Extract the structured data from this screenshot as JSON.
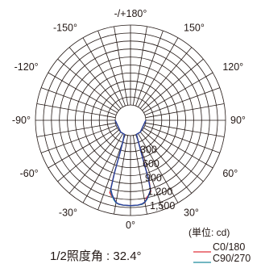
{
  "chart_data": {
    "type": "polar-line",
    "radial_axis": {
      "ticks": [
        300,
        600,
        900,
        1200,
        1500
      ],
      "tick_labels": [
        "300",
        "600",
        "900",
        "1,200",
        "1,500"
      ],
      "max": 1500
    },
    "angular_axis": {
      "labels": [
        {
          "angle": 0,
          "text": "0°"
        },
        {
          "angle": 30,
          "text": "30°"
        },
        {
          "angle": 60,
          "text": "60°"
        },
        {
          "angle": 90,
          "text": "90°"
        },
        {
          "angle": 120,
          "text": "120°"
        },
        {
          "angle": 150,
          "text": "150°"
        },
        {
          "angle": 180,
          "text": "-/+180°"
        },
        {
          "angle": -150,
          "text": "-150°"
        },
        {
          "angle": -120,
          "text": "-120°"
        },
        {
          "angle": -90,
          "text": "-90°"
        },
        {
          "angle": -60,
          "text": "-60°"
        },
        {
          "angle": -30,
          "text": "-30°"
        }
      ]
    },
    "unit_label": "(単位: cd)",
    "series": [
      {
        "name": "C0/180",
        "color": "#e0303a",
        "points": [
          [
            -90,
            0
          ],
          [
            -40,
            0
          ],
          [
            -24,
            0
          ],
          [
            -20,
            150
          ],
          [
            -18,
            400
          ],
          [
            -17,
            900
          ],
          [
            -16,
            1280
          ],
          [
            -14,
            1340
          ],
          [
            -12,
            1370
          ],
          [
            -10,
            1460
          ],
          [
            -8,
            1480
          ],
          [
            -5,
            1490
          ],
          [
            0,
            1495
          ],
          [
            5,
            1490
          ],
          [
            8,
            1480
          ],
          [
            10,
            1460
          ],
          [
            12,
            1350
          ],
          [
            14,
            1310
          ],
          [
            16,
            1250
          ],
          [
            17,
            1050
          ],
          [
            18,
            600
          ],
          [
            20,
            200
          ],
          [
            23,
            0
          ],
          [
            40,
            0
          ],
          [
            90,
            0
          ]
        ]
      },
      {
        "name": "C90/270",
        "color": "#1f8c9e",
        "points": [
          [
            -90,
            0
          ],
          [
            -40,
            0
          ],
          [
            -24,
            0
          ],
          [
            -20,
            150
          ],
          [
            -18,
            400
          ],
          [
            -17,
            850
          ],
          [
            -16,
            1230
          ],
          [
            -14,
            1320
          ],
          [
            -12,
            1400
          ],
          [
            -10,
            1460
          ],
          [
            -8,
            1480
          ],
          [
            -5,
            1490
          ],
          [
            0,
            1495
          ],
          [
            5,
            1490
          ],
          [
            8,
            1480
          ],
          [
            10,
            1450
          ],
          [
            12,
            1390
          ],
          [
            14,
            1310
          ],
          [
            16,
            1230
          ],
          [
            17,
            1000
          ],
          [
            18,
            500
          ],
          [
            20,
            180
          ],
          [
            23,
            0
          ],
          [
            40,
            0
          ],
          [
            90,
            0
          ]
        ]
      },
      {
        "name": "",
        "color": "#2b3f9c",
        "points": [
          [
            -90,
            0
          ],
          [
            -40,
            0
          ],
          [
            -24,
            0
          ],
          [
            -20,
            120
          ],
          [
            -18,
            380
          ],
          [
            -17,
            820
          ],
          [
            -16,
            1200
          ],
          [
            -14,
            1300
          ],
          [
            -12,
            1380
          ],
          [
            -10,
            1450
          ],
          [
            -8,
            1475
          ],
          [
            -5,
            1488
          ],
          [
            0,
            1492
          ],
          [
            5,
            1488
          ],
          [
            8,
            1470
          ],
          [
            10,
            1440
          ],
          [
            12,
            1380
          ],
          [
            14,
            1300
          ],
          [
            16,
            1220
          ],
          [
            17,
            980
          ],
          [
            18,
            480
          ],
          [
            20,
            160
          ],
          [
            23,
            0
          ],
          [
            40,
            0
          ],
          [
            90,
            0
          ]
        ]
      }
    ],
    "legend": [
      {
        "label": "C0/180",
        "color": "#e0303a"
      },
      {
        "label": "C90/270",
        "color": "#1f8c9e"
      }
    ],
    "annotation": "1/2照度角 : 32.4°"
  }
}
